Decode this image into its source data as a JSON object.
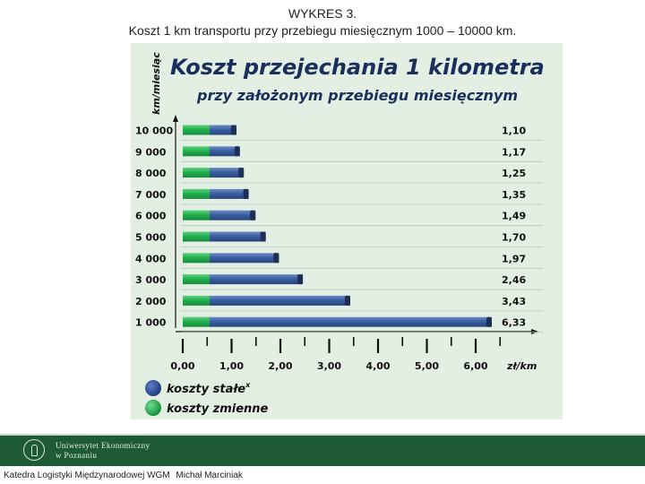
{
  "slide": {
    "title_line1": "WYKRES 3.",
    "title_line2": "Koszt 1 km transportu przy przebiegu miesięcznym 1000 – 10000 km."
  },
  "footer": {
    "university_line1": "Uniwersytet Ekonomiczny",
    "university_line2": "w Poznaniu",
    "department": "Katedra Logistyki Międzynarodowej WGM",
    "author": "Michał Marciniak"
  },
  "colors": {
    "panel_bg": "#e3efe3",
    "fixed_cost": "#3b5fa0",
    "fixed_cost_tip": "#1d2f57",
    "variable_cost": "#21b14f",
    "title": "#1a2f5c",
    "footer_band": "#1f5a36"
  },
  "chart_data": {
    "type": "bar",
    "orientation": "horizontal",
    "stacked": true,
    "title": "Koszt przejechania 1 kilometra",
    "subtitle": "przy założonym przebiegu miesięcznym",
    "ylabel": "km/miesiąc",
    "xlabel": "zł/km",
    "xlim": [
      0,
      7
    ],
    "xticks": [
      "0,00",
      "1,00",
      "2,00",
      "3,00",
      "4,00",
      "5,00",
      "6,00"
    ],
    "categories": [
      "10 000",
      "9 000",
      "8 000",
      "7 000",
      "6 000",
      "5 000",
      "4 000",
      "3 000",
      "2 000",
      "1 000"
    ],
    "totals": [
      1.1,
      1.17,
      1.25,
      1.35,
      1.49,
      1.7,
      1.97,
      2.46,
      3.43,
      6.33
    ],
    "total_labels": [
      "1,10",
      "1,17",
      "1,25",
      "1,35",
      "1,49",
      "1,70",
      "1,97",
      "2,46",
      "3,43",
      "6,33"
    ],
    "series": [
      {
        "name": "koszty zmienne",
        "values": [
          0.55,
          0.55,
          0.55,
          0.55,
          0.55,
          0.55,
          0.55,
          0.55,
          0.55,
          0.55
        ]
      },
      {
        "name": "koszty stałe",
        "values": [
          0.55,
          0.62,
          0.7,
          0.8,
          0.94,
          1.15,
          1.42,
          1.91,
          2.88,
          5.78
        ]
      }
    ],
    "legend": {
      "placement": "bottom-left",
      "fixed_label": "koszty stałe",
      "fixed_marker": "x",
      "variable_label": "koszty zmienne"
    },
    "grid": false
  }
}
